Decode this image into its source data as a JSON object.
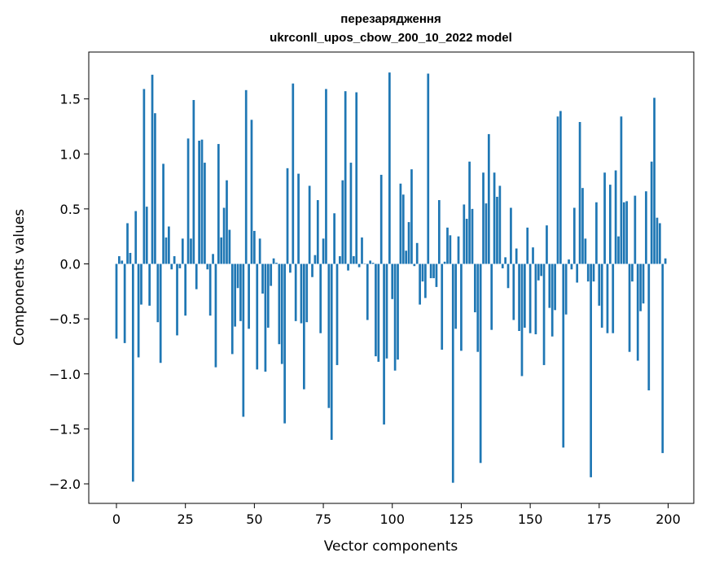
{
  "chart_data": {
    "type": "bar",
    "title": "перезарядження",
    "subtitle": "ukrconll_upos_cbow_200_10_2022 model",
    "xlabel": "Vector components",
    "ylabel": "Components values",
    "xlim": [
      -5,
      204
    ],
    "ylim": [
      -2.2,
      1.9
    ],
    "xticks": [
      0,
      25,
      50,
      75,
      100,
      125,
      150,
      175,
      200
    ],
    "xtick_labels": [
      "0",
      "25",
      "50",
      "75",
      "100",
      "125",
      "150",
      "175",
      "200"
    ],
    "yticks": [
      -2.0,
      -1.5,
      -1.0,
      -0.5,
      0.0,
      0.5,
      1.0,
      1.5
    ],
    "ytick_labels": [
      "−2.0",
      "−1.5",
      "−1.0",
      "−0.5",
      "0.0",
      "0.5",
      "1.0",
      "1.5"
    ],
    "bar_color": "#1f77b4",
    "values": [
      -0.68,
      0.07,
      0.03,
      -0.72,
      0.37,
      0.1,
      -1.98,
      0.48,
      -0.85,
      -0.37,
      1.59,
      0.52,
      -0.38,
      1.72,
      1.37,
      -0.53,
      -0.9,
      0.91,
      0.24,
      0.34,
      -0.05,
      0.07,
      -0.65,
      -0.04,
      0.23,
      -0.47,
      1.14,
      0.23,
      1.49,
      -0.23,
      1.12,
      1.13,
      0.92,
      -0.05,
      -0.47,
      0.09,
      -0.94,
      1.09,
      0.24,
      0.51,
      0.76,
      0.31,
      -0.82,
      -0.57,
      -0.22,
      -0.52,
      -1.39,
      1.58,
      -0.59,
      1.31,
      0.3,
      -0.96,
      0.23,
      -0.27,
      -0.98,
      -0.58,
      -0.2,
      0.05,
      0.01,
      -0.73,
      -0.91,
      -1.45,
      0.87,
      -0.08,
      1.64,
      -0.52,
      0.82,
      -0.54,
      -1.14,
      -0.53,
      0.71,
      -0.12,
      0.08,
      0.58,
      -0.63,
      0.23,
      1.59,
      -1.31,
      -1.6,
      0.46,
      -0.92,
      0.07,
      0.76,
      1.57,
      -0.06,
      0.92,
      0.07,
      1.56,
      -0.03,
      0.24,
      0.0,
      -0.51,
      0.03,
      0.01,
      -0.84,
      -0.89,
      0.81,
      -1.46,
      -0.86,
      1.74,
      -0.32,
      -0.97,
      -0.87,
      0.73,
      0.63,
      0.12,
      0.38,
      0.86,
      -0.02,
      0.19,
      -0.37,
      -0.16,
      -0.31,
      1.73,
      -0.13,
      -0.13,
      -0.21,
      0.58,
      -0.78,
      0.02,
      0.33,
      0.26,
      -1.99,
      -0.59,
      0.25,
      -0.79,
      0.54,
      0.41,
      0.93,
      0.5,
      -0.44,
      -0.8,
      -1.81,
      0.83,
      0.55,
      1.18,
      -0.6,
      0.83,
      0.61,
      0.71,
      -0.04,
      0.06,
      -0.22,
      0.51,
      -0.51,
      0.14,
      -0.61,
      -1.02,
      -0.58,
      0.33,
      -0.63,
      0.15,
      -0.64,
      -0.15,
      -0.11,
      -0.92,
      0.35,
      -0.4,
      -0.66,
      -0.42,
      1.34,
      1.39,
      -1.67,
      -0.46,
      0.04,
      -0.05,
      0.51,
      -0.17,
      1.29,
      0.69,
      0.23,
      -0.16,
      -1.94,
      -0.16,
      0.56,
      -0.38,
      -0.58,
      0.83,
      -0.63,
      0.72,
      -0.63,
      0.85,
      0.25,
      1.34,
      0.56,
      0.57,
      -0.8,
      -0.16,
      0.62,
      -0.88,
      -0.43,
      -0.36,
      0.66,
      -1.15,
      0.93,
      1.51,
      0.42,
      0.37,
      -1.72,
      0.05
    ]
  }
}
